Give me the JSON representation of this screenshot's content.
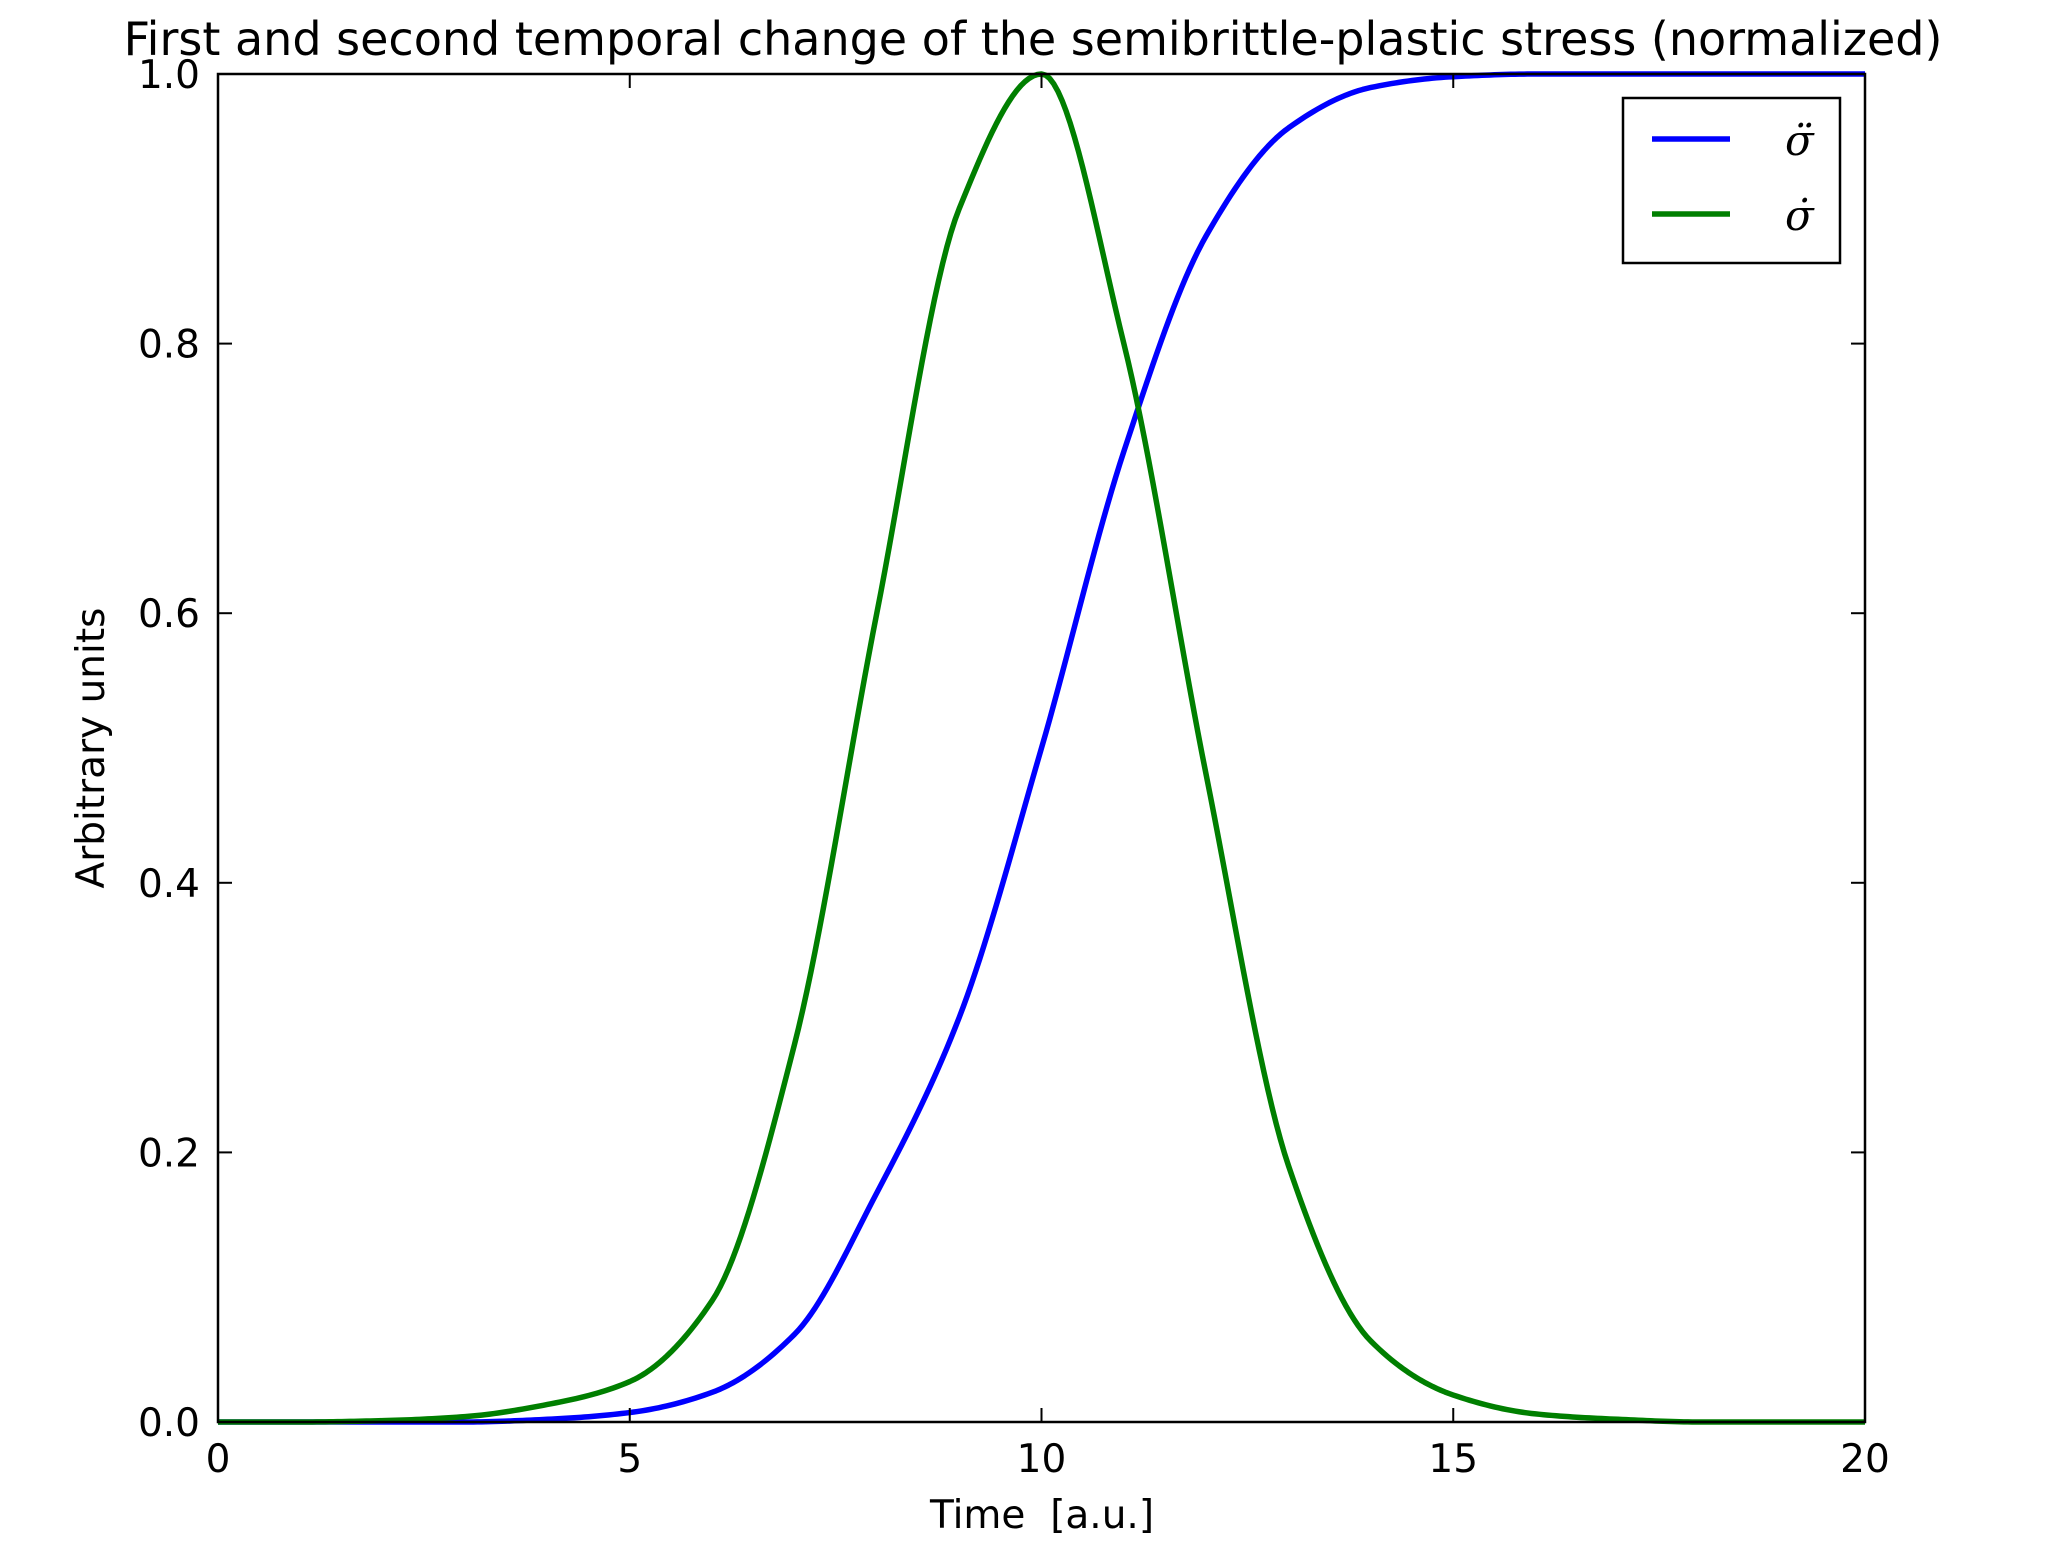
{
  "chart_data": {
    "type": "line",
    "title": "First and second temporal change of the semibrittle-plastic stress (normalized)",
    "xlabel": "Time  [a.u.]",
    "ylabel": "Arbitrary units",
    "xlim": [
      0,
      20
    ],
    "ylim": [
      0,
      1.0
    ],
    "x_ticks": [
      0,
      5,
      10,
      15,
      20
    ],
    "x_tick_labels": [
      "0",
      "5",
      "10",
      "15",
      "20"
    ],
    "y_ticks": [
      0.0,
      0.2,
      0.4,
      0.6,
      0.8,
      1.0
    ],
    "y_tick_labels": [
      "0.0",
      "0.2",
      "0.4",
      "0.6",
      "0.8",
      "1.0"
    ],
    "grid": false,
    "legend_position": "top-right",
    "x": [
      0,
      1,
      2,
      3,
      4,
      5,
      6,
      7,
      8,
      9,
      10,
      11,
      12,
      13,
      14,
      15,
      16,
      17,
      18,
      19,
      20
    ],
    "series": [
      {
        "name": "σ̈",
        "color": "#0000ff",
        "values": [
          0.0,
          0.0,
          0.0,
          0.0,
          0.002,
          0.007,
          0.022,
          0.065,
          0.17,
          0.3,
          0.5,
          0.72,
          0.88,
          0.96,
          0.99,
          0.998,
          1.0,
          1.0,
          1.0,
          1.0,
          1.0
        ]
      },
      {
        "name": "σ̇",
        "color": "#007f00",
        "values": [
          0.0,
          0.0,
          0.001,
          0.004,
          0.013,
          0.03,
          0.09,
          0.28,
          0.6,
          0.9,
          1.0,
          0.8,
          0.48,
          0.19,
          0.06,
          0.02,
          0.006,
          0.002,
          0.0,
          0.0,
          0.0
        ]
      }
    ]
  }
}
